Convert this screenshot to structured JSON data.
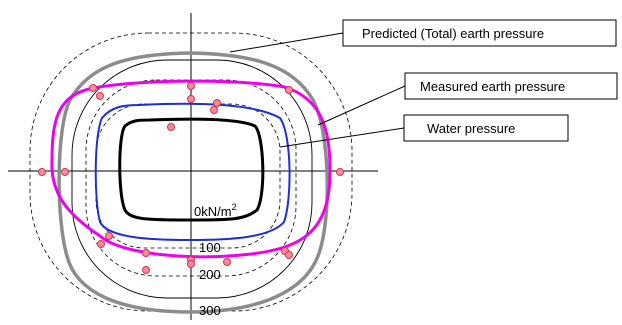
{
  "legend": {
    "predicted": "Predicted (Total) earth pressure",
    "measured": "Measured earth pressure",
    "water": "Water pressure"
  },
  "scale": {
    "zero": "0kN/m",
    "zero_sup": "2",
    "l100": "100",
    "l200": "200",
    "l300": "300"
  },
  "colors": {
    "predicted": "#8c8c8c",
    "measured": "#ee00ee",
    "water": "#1f2fd6",
    "lining": "#000000",
    "points_fill": "#f58c9b",
    "points_stroke": "#d2354f"
  }
}
